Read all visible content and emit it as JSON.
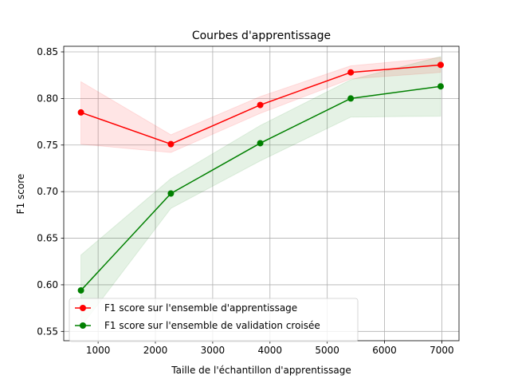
{
  "chart_data": {
    "type": "line",
    "title": "Courbes d'apprentissage",
    "xlabel": "Taille de l'échantillon d'apprentissage",
    "ylabel": "F1 score",
    "xlim": [
      400,
      7300
    ],
    "ylim": [
      0.54,
      0.856
    ],
    "xticks": [
      1000,
      2000,
      3000,
      4000,
      5000,
      6000,
      7000
    ],
    "xtick_labels": [
      "1000",
      "2000",
      "3000",
      "4000",
      "5000",
      "6000",
      "7000"
    ],
    "yticks": [
      0.55,
      0.6,
      0.65,
      0.7,
      0.75,
      0.8,
      0.85
    ],
    "ytick_labels": [
      "0.55",
      "0.60",
      "0.65",
      "0.70",
      "0.75",
      "0.80",
      "0.85"
    ],
    "grid": true,
    "legend_position": "lower-left",
    "x": [
      700,
      2270,
      3830,
      5410,
      6980
    ],
    "series": [
      {
        "name": "F1 score sur l'ensemble d'apprentissage",
        "color": "#ff0000",
        "band_color": "#ff0000",
        "values": [
          0.785,
          0.751,
          0.793,
          0.828,
          0.836
        ],
        "lower": [
          0.751,
          0.742,
          0.784,
          0.821,
          0.828
        ],
        "upper": [
          0.818,
          0.761,
          0.802,
          0.835,
          0.844
        ]
      },
      {
        "name": "F1 score sur l'ensemble de validation croisée",
        "color": "#008000",
        "band_color": "#008000",
        "values": [
          0.594,
          0.698,
          0.752,
          0.8,
          0.813
        ],
        "lower": [
          0.555,
          0.682,
          0.733,
          0.78,
          0.781
        ],
        "upper": [
          0.632,
          0.714,
          0.771,
          0.82,
          0.845
        ]
      }
    ]
  }
}
